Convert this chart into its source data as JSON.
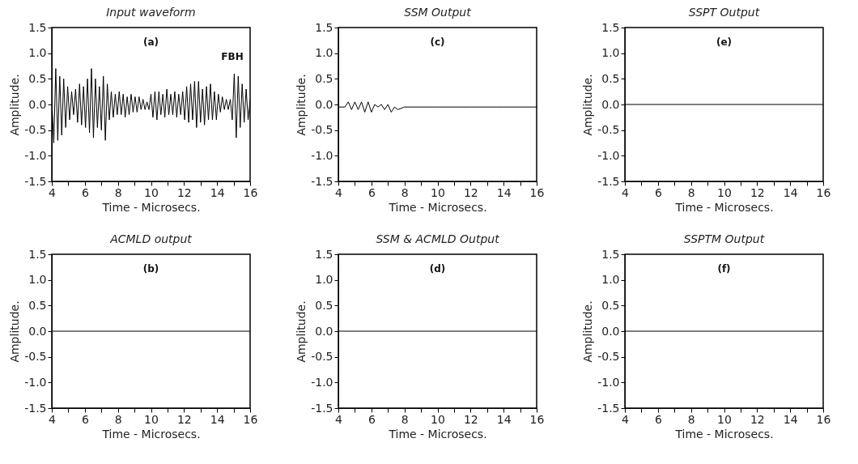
{
  "chart_data": [
    {
      "type": "line",
      "title": "Input waveform",
      "xlabel": "Time - Microsecs.",
      "ylabel": "Amplitude.",
      "annotations": [
        "(a)",
        "FBH"
      ],
      "xlim": [
        4,
        16
      ],
      "ylim": [
        -1.5,
        1.5
      ],
      "xticks": [
        4,
        {
          "value": 5,
          "label": null
        },
        6,
        {
          "value": 7,
          "label": null
        },
        8,
        {
          "value": 9,
          "label": null
        },
        10,
        {
          "value": 11,
          "label": null
        },
        12,
        {
          "value": 13,
          "label": null
        },
        14,
        {
          "value": 15,
          "label": null
        },
        16
      ],
      "yticks": [
        -1.5,
        {
          "value": -1,
          "label": "-1.0"
        },
        -0.5,
        {
          "value": 0,
          "label": "0.0"
        },
        0.5,
        {
          "value": 1,
          "label": "1.0"
        },
        1.5
      ],
      "series": [
        {
          "color": "#000000",
          "x": [
            4.0,
            4.12,
            4.24,
            4.36,
            4.48,
            4.6,
            4.72,
            4.84,
            4.96,
            5.08,
            5.2,
            5.32,
            5.44,
            5.56,
            5.68,
            5.8,
            5.92,
            6.04,
            6.16,
            6.28,
            6.4,
            6.52,
            6.64,
            6.76,
            6.88,
            7.0,
            7.12,
            7.24,
            7.36,
            7.48,
            7.6,
            7.72,
            7.84,
            7.96,
            8.08,
            8.2,
            8.32,
            8.44,
            8.56,
            8.68,
            8.8,
            8.92,
            9.04,
            9.16,
            9.28,
            9.4,
            9.52,
            9.64,
            9.76,
            9.88,
            10.0,
            10.12,
            10.24,
            10.36,
            10.48,
            10.6,
            10.72,
            10.84,
            10.96,
            11.08,
            11.2,
            11.32,
            11.44,
            11.56,
            11.68,
            11.8,
            11.92,
            12.04,
            12.16,
            12.28,
            12.4,
            12.52,
            12.64,
            12.76,
            12.88,
            13.0,
            13.12,
            13.24,
            13.36,
            13.48,
            13.6,
            13.72,
            13.84,
            13.96,
            14.08,
            14.2,
            14.32,
            14.44,
            14.56,
            14.68,
            14.8,
            14.92,
            15.04,
            15.16,
            15.28,
            15.4,
            15.52,
            15.64,
            15.76,
            15.88,
            16.0
          ],
          "values": [
            0.1,
            -0.75,
            0.7,
            -0.7,
            0.55,
            -0.6,
            0.5,
            -0.45,
            0.35,
            -0.3,
            0.25,
            -0.2,
            0.3,
            -0.35,
            0.4,
            -0.4,
            0.35,
            -0.45,
            0.5,
            -0.55,
            0.7,
            -0.65,
            0.5,
            -0.45,
            0.35,
            -0.5,
            0.55,
            -0.7,
            0.4,
            -0.3,
            0.25,
            -0.25,
            0.2,
            -0.2,
            0.25,
            -0.2,
            0.2,
            -0.25,
            0.15,
            -0.2,
            0.2,
            -0.15,
            0.15,
            -0.15,
            0.15,
            -0.1,
            0.1,
            -0.1,
            0.05,
            -0.1,
            0.2,
            -0.25,
            0.25,
            -0.3,
            0.25,
            -0.2,
            0.2,
            -0.25,
            0.3,
            -0.2,
            0.2,
            -0.2,
            0.25,
            -0.25,
            0.2,
            -0.2,
            0.25,
            -0.3,
            0.35,
            -0.35,
            0.4,
            -0.3,
            0.45,
            -0.45,
            0.45,
            -0.35,
            0.3,
            -0.4,
            0.35,
            -0.3,
            0.4,
            -0.3,
            0.25,
            -0.3,
            0.2,
            -0.15,
            0.15,
            -0.1,
            0.1,
            -0.1,
            0.1,
            -0.3,
            0.6,
            -0.65,
            0.55,
            -0.45,
            0.4,
            -0.35,
            0.3,
            -0.3,
            0.1
          ]
        }
      ]
    },
    {
      "type": "line",
      "title": "SSM Output",
      "xlabel": "Time - Microsecs.",
      "ylabel": "Amplitude.",
      "annotations": [
        "(c)"
      ],
      "xlim": [
        4,
        16
      ],
      "ylim": [
        -1.5,
        1.5
      ],
      "xticks": [
        4,
        {
          "value": 5,
          "label": null
        },
        6,
        {
          "value": 7,
          "label": null
        },
        8,
        {
          "value": 9,
          "label": null
        },
        10,
        {
          "value": 11,
          "label": null
        },
        12,
        {
          "value": 13,
          "label": null
        },
        14,
        {
          "value": 15,
          "label": null
        },
        16
      ],
      "yticks": [
        -1.5,
        {
          "value": -1,
          "label": "-1.0"
        },
        -0.5,
        {
          "value": 0,
          "label": "0.0"
        },
        0.5,
        {
          "value": 1,
          "label": "1.0"
        },
        1.5
      ],
      "series": [
        {
          "color": "#000000",
          "x": [
            4,
            4.4,
            4.6,
            4.8,
            5.0,
            5.2,
            5.4,
            5.6,
            5.8,
            6.0,
            6.2,
            6.4,
            6.6,
            6.8,
            7.0,
            7.2,
            7.4,
            7.6,
            8,
            9,
            10,
            12,
            14,
            16
          ],
          "values": [
            -0.05,
            -0.05,
            0.05,
            -0.1,
            0.05,
            -0.1,
            0.05,
            -0.15,
            0.05,
            -0.15,
            0,
            -0.05,
            0,
            -0.1,
            0,
            -0.15,
            -0.05,
            -0.1,
            -0.05,
            -0.05,
            -0.05,
            -0.05,
            -0.05,
            -0.05
          ]
        }
      ]
    },
    {
      "type": "line",
      "title": "SSPT Output",
      "xlabel": "Time - Microsecs.",
      "ylabel": "Amplitude.",
      "annotations": [
        "(e)"
      ],
      "xlim": [
        4,
        16
      ],
      "ylim": [
        -1.5,
        1.5
      ],
      "xticks": [
        4,
        {
          "value": 5,
          "label": null
        },
        6,
        {
          "value": 7,
          "label": null
        },
        8,
        {
          "value": 9,
          "label": null
        },
        10,
        {
          "value": 11,
          "label": null
        },
        12,
        {
          "value": 13,
          "label": null
        },
        14,
        {
          "value": 15,
          "label": null
        },
        16
      ],
      "yticks": [
        -1.5,
        {
          "value": -1,
          "label": "-1.0"
        },
        -0.5,
        {
          "value": 0,
          "label": "0.0"
        },
        0.5,
        {
          "value": 1,
          "label": "1.0"
        },
        1.5
      ],
      "series": [
        {
          "color": "#000000",
          "x": [
            4,
            16
          ],
          "values": [
            0,
            0
          ]
        }
      ]
    },
    {
      "type": "line",
      "title": "ACMLD output",
      "xlabel": "Time - Microsecs.",
      "ylabel": "Amplitude.",
      "annotations": [
        "(b)"
      ],
      "xlim": [
        4,
        16
      ],
      "ylim": [
        -1.5,
        1.5
      ],
      "xticks": [
        4,
        {
          "value": 5,
          "label": null
        },
        6,
        {
          "value": 7,
          "label": null
        },
        8,
        {
          "value": 9,
          "label": null
        },
        10,
        {
          "value": 11,
          "label": null
        },
        12,
        {
          "value": 13,
          "label": null
        },
        14,
        {
          "value": 15,
          "label": null
        },
        16
      ],
      "yticks": [
        -1.5,
        {
          "value": -1,
          "label": "-1.0"
        },
        -0.5,
        {
          "value": 0,
          "label": "0.0"
        },
        0.5,
        {
          "value": 1,
          "label": "1.0"
        },
        1.5
      ],
      "series": [
        {
          "color": "#000000",
          "x": [
            4,
            16
          ],
          "values": [
            0,
            0
          ]
        }
      ]
    },
    {
      "type": "line",
      "title": "SSM & ACMLD Output",
      "xlabel": "Time - Microsecs.",
      "ylabel": "Amplitude.",
      "annotations": [
        "(d)"
      ],
      "xlim": [
        4,
        16
      ],
      "ylim": [
        -1.5,
        1.5
      ],
      "xticks": [
        4,
        {
          "value": 5,
          "label": null
        },
        6,
        {
          "value": 7,
          "label": null
        },
        8,
        {
          "value": 9,
          "label": null
        },
        10,
        {
          "value": 11,
          "label": null
        },
        12,
        {
          "value": 13,
          "label": null
        },
        14,
        {
          "value": 15,
          "label": null
        },
        16
      ],
      "yticks": [
        -1.5,
        {
          "value": -1,
          "label": "-1.0"
        },
        -0.5,
        {
          "value": 0,
          "label": "0.0"
        },
        0.5,
        {
          "value": 1,
          "label": "1.0"
        },
        1.5
      ],
      "series": [
        {
          "color": "#000000",
          "x": [
            4,
            16
          ],
          "values": [
            0,
            0
          ]
        }
      ]
    },
    {
      "type": "line",
      "title": "SSPTM Output",
      "xlabel": "Time - Microsecs.",
      "ylabel": "Amplitude.",
      "annotations": [
        "(f)"
      ],
      "xlim": [
        4,
        16
      ],
      "ylim": [
        -1.5,
        1.5
      ],
      "xticks": [
        4,
        {
          "value": 5,
          "label": null
        },
        6,
        {
          "value": 7,
          "label": null
        },
        8,
        {
          "value": 9,
          "label": null
        },
        10,
        {
          "value": 11,
          "label": null
        },
        12,
        {
          "value": 13,
          "label": null
        },
        14,
        {
          "value": 15,
          "label": null
        },
        16
      ],
      "yticks": [
        -1.5,
        {
          "value": -1,
          "label": "-1.0"
        },
        -0.5,
        {
          "value": 0,
          "label": "0.0"
        },
        0.5,
        {
          "value": 1,
          "label": "1.0"
        },
        1.5
      ],
      "series": [
        {
          "color": "#000000",
          "x": [
            4,
            16
          ],
          "values": [
            0,
            0
          ]
        }
      ]
    }
  ]
}
